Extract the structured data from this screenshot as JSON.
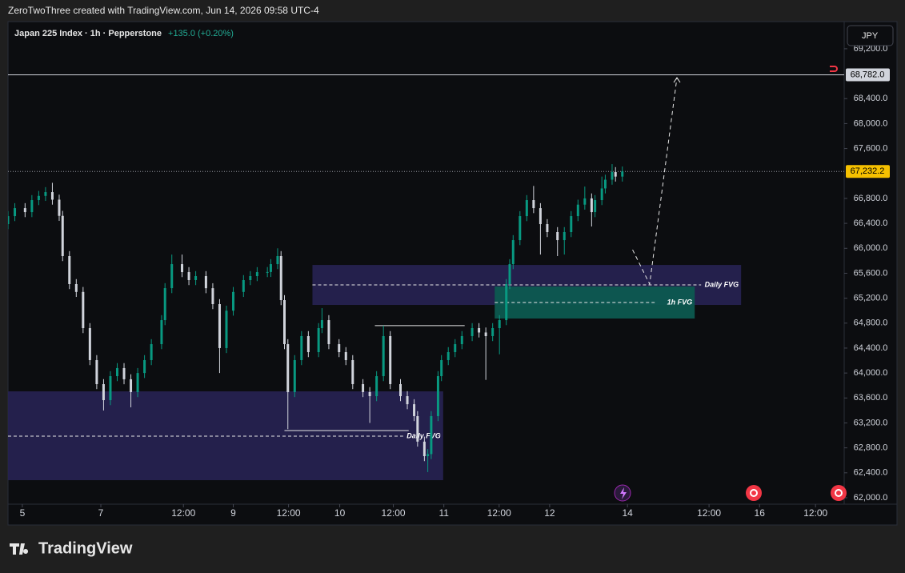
{
  "header": {
    "text": "ZeroTwoThree created with TradingView.com, Jun 14, 2026 09:58 UTC-4"
  },
  "footer": {
    "logo": "TradingView"
  },
  "chart_data": {
    "type": "candlestick",
    "title": "Japan 225 Index · 1h · Pepperstone",
    "change": "+135.0 (+0.20%)",
    "currency": "JPY",
    "up_color": "#089981",
    "down_color": "#d1d4dc",
    "x": [
      0,
      2,
      5,
      7,
      9,
      11,
      13,
      15,
      16,
      18,
      20,
      22,
      24,
      26,
      28,
      30,
      32,
      34,
      36,
      38,
      40,
      42,
      45,
      46,
      48,
      51,
      53,
      55,
      58,
      60,
      62,
      64,
      66,
      69,
      71,
      73,
      76,
      77,
      79,
      80,
      81,
      82,
      84,
      86,
      88,
      91,
      92,
      94,
      97,
      99,
      101,
      104,
      106,
      108,
      110,
      112,
      115,
      117,
      119,
      120,
      122,
      123,
      124,
      126,
      127,
      129,
      131,
      133,
      136,
      138,
      140,
      142,
      144,
      146,
      147,
      148,
      150,
      152,
      154,
      156,
      158,
      161,
      163,
      165,
      167,
      169,
      171,
      172,
      174,
      175,
      177,
      178,
      180
    ],
    "open": [
      66388,
      66516,
      66644,
      66580,
      66773,
      66840,
      66901,
      66780,
      66520,
      65875,
      65426,
      65300,
      64720,
      64207,
      63822,
      63565,
      63950,
      64079,
      63900,
      63694,
      64000,
      64207,
      64463,
      64848,
      65361,
      65746,
      65618,
      65490,
      65554,
      65360,
      65105,
      64400,
      65000,
      65300,
      65490,
      65554,
      65618,
      65620,
      65746,
      65875,
      65169,
      64463,
      63694,
      64207,
      64592,
      64335,
      64720,
      64848,
      64463,
      64335,
      64207,
      63822,
      63694,
      63629,
      63950,
      64592,
      63822,
      63629,
      63500,
      63309,
      62900,
      62667,
      62700,
      63309,
      63950,
      64207,
      64335,
      64463,
      64592,
      64720,
      64650,
      64592,
      64720,
      64848,
      65426,
      65746,
      66131,
      66516,
      66773,
      66644,
      66388,
      66260,
      66131,
      66260,
      66516,
      66700,
      66800,
      66580,
      66773,
      66960,
      67100,
      67222,
      67150
    ],
    "high": [
      66596,
      66724,
      66724,
      66853,
      66920,
      66981,
      67050,
      66860,
      66600,
      65955,
      65506,
      65380,
      64800,
      64287,
      63902,
      64030,
      64159,
      64159,
      63980,
      64080,
      64287,
      64543,
      64928,
      65441,
      65900,
      65900,
      65698,
      65634,
      65634,
      65440,
      65185,
      65080,
      65380,
      65570,
      65634,
      65698,
      65700,
      65826,
      66000,
      65955,
      65249,
      64543,
      64287,
      64672,
      64672,
      64800,
      65040,
      64928,
      64543,
      64415,
      64287,
      63902,
      63774,
      64030,
      64760,
      64672,
      63902,
      63709,
      63580,
      63389,
      62980,
      62780,
      63389,
      64030,
      64287,
      64415,
      64543,
      64672,
      64800,
      64800,
      64730,
      64800,
      64928,
      65506,
      65826,
      66211,
      66596,
      66853,
      67000,
      66724,
      66468,
      66340,
      66340,
      66596,
      66780,
      66990,
      66880,
      66853,
      67150,
      67180,
      67350,
      67302,
      67312
    ],
    "low": [
      66308,
      66436,
      66500,
      66500,
      66693,
      66760,
      66700,
      66440,
      65795,
      65346,
      65220,
      64640,
      64127,
      63742,
      63400,
      63485,
      63870,
      63820,
      63450,
      63614,
      63920,
      64127,
      64383,
      64768,
      65281,
      65538,
      65410,
      65410,
      65280,
      65025,
      64000,
      64320,
      64920,
      65220,
      65410,
      65474,
      65538,
      65540,
      65666,
      65089,
      64383,
      63100,
      63614,
      64127,
      64255,
      64255,
      64640,
      64383,
      64255,
      64127,
      63742,
      63614,
      63200,
      63549,
      63870,
      63742,
      63549,
      63420,
      63229,
      62820,
      62587,
      62411,
      62620,
      63229,
      63870,
      64127,
      64255,
      64383,
      64512,
      64570,
      63890,
      64512,
      64300,
      64768,
      65346,
      65666,
      66051,
      66436,
      66564,
      65900,
      66180,
      65875,
      65900,
      66180,
      66436,
      66620,
      66350,
      66500,
      66693,
      66880,
      67020,
      67070,
      67070
    ],
    "close": [
      66516,
      66644,
      66580,
      66773,
      66840,
      66901,
      66780,
      66520,
      65875,
      65426,
      65300,
      64720,
      64207,
      63822,
      63565,
      63950,
      64079,
      63900,
      63694,
      64000,
      64207,
      64463,
      64848,
      65361,
      65746,
      65618,
      65490,
      65554,
      65360,
      65105,
      64400,
      65000,
      65300,
      65490,
      65554,
      65618,
      65620,
      65746,
      65875,
      65169,
      64463,
      63694,
      64207,
      64592,
      64335,
      64720,
      64848,
      64463,
      64335,
      64207,
      63822,
      63694,
      63629,
      63950,
      64592,
      63822,
      63629,
      63500,
      63309,
      62900,
      62667,
      62700,
      63309,
      63950,
      64207,
      64335,
      64463,
      64592,
      64720,
      64650,
      64592,
      64720,
      64848,
      65426,
      65746,
      66131,
      66516,
      66773,
      66644,
      66388,
      66260,
      66131,
      66260,
      66516,
      66700,
      66800,
      66580,
      66773,
      66960,
      67100,
      67222,
      67150,
      67232.2
    ],
    "xlim": [
      0,
      245
    ],
    "xticks": [
      {
        "value": 4.2,
        "label": "5"
      },
      {
        "value": 27.2,
        "label": "7"
      },
      {
        "value": 51.4,
        "label": "12:00"
      },
      {
        "value": 66,
        "label": "9"
      },
      {
        "value": 82.2,
        "label": "12:00"
      },
      {
        "value": 97.2,
        "label": "10"
      },
      {
        "value": 112.9,
        "label": "12:00"
      },
      {
        "value": 127.7,
        "label": "11"
      },
      {
        "value": 143.9,
        "label": "12:00"
      },
      {
        "value": 158.7,
        "label": "12"
      },
      {
        "value": 181.5,
        "label": "14"
      },
      {
        "value": 205.4,
        "label": "12:00"
      },
      {
        "value": 220.2,
        "label": "16"
      },
      {
        "value": 236.6,
        "label": "12:00"
      }
    ],
    "ylim": [
      61897,
      69635
    ],
    "yticks": [
      {
        "value": 62000,
        "label": "62,000.0"
      },
      {
        "value": 62400,
        "label": "62,400.0"
      },
      {
        "value": 62800,
        "label": "62,800.0"
      },
      {
        "value": 63200,
        "label": "63,200.0"
      },
      {
        "value": 63600,
        "label": "63,600.0"
      },
      {
        "value": 64000,
        "label": "64,000.0"
      },
      {
        "value": 64400,
        "label": "64,400.0"
      },
      {
        "value": 64800,
        "label": "64,800.0"
      },
      {
        "value": 65200,
        "label": "65,200.0"
      },
      {
        "value": 65600,
        "label": "65,600.0"
      },
      {
        "value": 66000,
        "label": "66,000.0"
      },
      {
        "value": 66400,
        "label": "66,400.0"
      },
      {
        "value": 66800,
        "label": "66,800.0"
      },
      {
        "value": 67600,
        "label": "67,600.0"
      },
      {
        "value": 68000,
        "label": "68,000.0"
      },
      {
        "value": 68400,
        "label": "68,400.0"
      },
      {
        "value": 69200,
        "label": "69,200.0"
      }
    ],
    "price_labels": [
      {
        "value": 68782,
        "label": "68,782.0",
        "color": "#d1d4dc",
        "style": "solid"
      },
      {
        "value": 67232.2,
        "label": "67,232.2",
        "color": "#f5c000",
        "style": "dotted"
      }
    ],
    "zones": [
      {
        "label": "Daily FVG",
        "top": 63706,
        "bottom": 62282,
        "mid": 62988,
        "x0": 0,
        "x1": 127.5,
        "color": "#262250"
      },
      {
        "label": "Daily FVG",
        "top": 65733,
        "bottom": 65092,
        "mid": 65413,
        "x0": 89.2,
        "x1": 214.8,
        "color": "#262250"
      },
      {
        "label": "1h FVG",
        "top": 65387,
        "bottom": 64874,
        "mid": 65131,
        "x0": 142.6,
        "x1": 201.2,
        "color": "#0d5a50"
      }
    ],
    "levels": [
      {
        "value": 64760,
        "x0": 107.5,
        "x1": 133.8
      },
      {
        "value": 63078,
        "x0": 81,
        "x1": 117.4
      }
    ],
    "projection": {
      "x": [
        183,
        188,
        196
      ],
      "price": [
        65977,
        65426,
        68736
      ]
    }
  }
}
